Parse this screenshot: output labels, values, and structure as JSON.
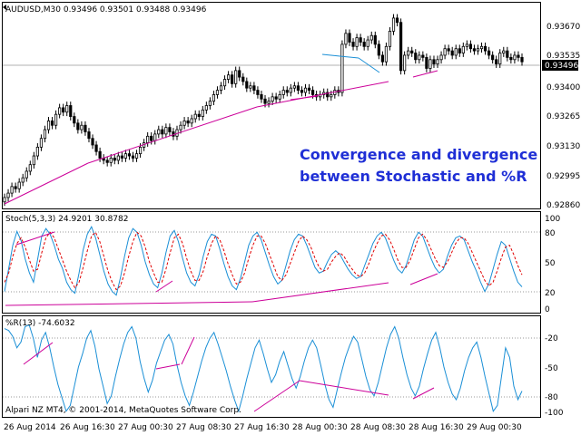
{
  "window": {
    "symbol_info": "AUDUSD,M30  0.93496 0.93501 0.93488 0.93496",
    "broker": "Alpari NZ MT4, © 2001-2014, MetaQuotes Software Corp.",
    "current_price": "0.93496"
  },
  "annotation": {
    "line1": "Convergence and divergence",
    "line2": "between Stochastic and %R"
  },
  "price_axis": [
    "0.93670",
    "0.93535",
    "0.93400",
    "0.93265",
    "0.93130",
    "0.92995",
    "0.92860"
  ],
  "stoch": {
    "title": "Stoch(5,3,3) 24.9201 30.8782",
    "axis": [
      "100",
      "80",
      "50",
      "20",
      "0"
    ]
  },
  "wpr": {
    "title": "%R(13) -74.6032",
    "axis": [
      "-20",
      "-50",
      "-80",
      "-100"
    ]
  },
  "time_axis": [
    "26 Aug 2014",
    "26 Aug 16:30",
    "27 Aug 00:30",
    "27 Aug 08:30",
    "27 Aug 16:30",
    "28 Aug 00:30",
    "28 Aug 08:30",
    "28 Aug 16:30",
    "29 Aug 00:30"
  ],
  "colors": {
    "candles": "#000000",
    "trendlines": "#cc0099",
    "main_line": "#1a8fd6",
    "signal_line": "#e00000",
    "annotation": "#1f2fd6",
    "price_box": "#000000"
  },
  "chart_data": [
    {
      "type": "candlestick",
      "title": "AUDUSD,M30",
      "ylim": [
        0.9282,
        0.9376
      ],
      "close": [
        0.9287,
        0.9289,
        0.9292,
        0.9291,
        0.9294,
        0.9296,
        0.9299,
        0.9302,
        0.9306,
        0.931,
        0.9314,
        0.9318,
        0.9322,
        0.932,
        0.9325,
        0.9328,
        0.9326,
        0.9329,
        0.9324,
        0.9321,
        0.9318,
        0.932,
        0.9317,
        0.9314,
        0.9311,
        0.9308,
        0.9305,
        0.9304,
        0.9303,
        0.9305,
        0.9304,
        0.9306,
        0.9305,
        0.9307,
        0.9306,
        0.9305,
        0.9307,
        0.931,
        0.9312,
        0.9315,
        0.9313,
        0.9316,
        0.9318,
        0.9316,
        0.9319,
        0.9317,
        0.9315,
        0.9318,
        0.932,
        0.9322,
        0.9321,
        0.9323,
        0.9325,
        0.9324,
        0.9327,
        0.9329,
        0.9331,
        0.9334,
        0.9336,
        0.9338,
        0.9341,
        0.9343,
        0.9339,
        0.9345,
        0.9342,
        0.934,
        0.9337,
        0.9338,
        0.9336,
        0.9334,
        0.9332,
        0.933,
        0.9331,
        0.9333,
        0.9332,
        0.9334,
        0.9336,
        0.9335,
        0.9337,
        0.9338,
        0.9336,
        0.9335,
        0.9337,
        0.9336,
        0.9334,
        0.9333,
        0.9334,
        0.9335,
        0.9333,
        0.9334,
        0.9336,
        0.9335,
        0.9357,
        0.9362,
        0.9358,
        0.9356,
        0.936,
        0.9358,
        0.9356,
        0.9359,
        0.9361,
        0.9357,
        0.9352,
        0.9349,
        0.9356,
        0.9363,
        0.9369,
        0.9367,
        0.9345,
        0.9352,
        0.9354,
        0.9353,
        0.935,
        0.9352,
        0.9351,
        0.9346,
        0.935,
        0.9348,
        0.935,
        0.9352,
        0.9355,
        0.9354,
        0.9352,
        0.9355,
        0.9353,
        0.9356,
        0.9357,
        0.9355,
        0.9354,
        0.9355,
        0.9356,
        0.9354,
        0.9352,
        0.935,
        0.9348,
        0.9353,
        0.9354,
        0.9351,
        0.935,
        0.9352,
        0.9351,
        0.9349
      ],
      "axis_ticks": [
        0.9367,
        0.93535,
        0.934,
        0.93265,
        0.9313,
        0.92995,
        0.9286
      ]
    },
    {
      "type": "line",
      "title": "Stoch(5,3,3)",
      "ylim": [
        0,
        100
      ],
      "series": [
        {
          "name": "main",
          "values": [
            20,
            45,
            70,
            85,
            75,
            55,
            40,
            30,
            55,
            80,
            88,
            82,
            70,
            55,
            45,
            30,
            22,
            18,
            40,
            65,
            82,
            90,
            78,
            60,
            42,
            28,
            20,
            16,
            35,
            58,
            78,
            88,
            84,
            70,
            52,
            38,
            28,
            24,
            40,
            62,
            80,
            86,
            74,
            56,
            40,
            30,
            26,
            38,
            58,
            74,
            82,
            80,
            66,
            50,
            36,
            26,
            22,
            34,
            52,
            70,
            80,
            84,
            76,
            62,
            48,
            36,
            28,
            32,
            48,
            64,
            76,
            82,
            80,
            70,
            58,
            46,
            40,
            42,
            52,
            60,
            64,
            60,
            52,
            44,
            38,
            34,
            36,
            48,
            60,
            72,
            80,
            84,
            78,
            66,
            54,
            44,
            40,
            48,
            62,
            76,
            84,
            80,
            68,
            56,
            46,
            40,
            44,
            58,
            70,
            78,
            80,
            76,
            64,
            52,
            42,
            30,
            20,
            28,
            44,
            60,
            74,
            70,
            56,
            42,
            30,
            25
          ]
        },
        {
          "name": "signal",
          "values": [
            30,
            40,
            58,
            72,
            78,
            68,
            54,
            42,
            44,
            62,
            78,
            84,
            78,
            66,
            54,
            42,
            32,
            24,
            30,
            46,
            64,
            80,
            84,
            74,
            58,
            42,
            30,
            22,
            26,
            40,
            58,
            74,
            84,
            80,
            68,
            52,
            40,
            30,
            30,
            44,
            62,
            78,
            82,
            72,
            56,
            42,
            32,
            32,
            42,
            58,
            72,
            80,
            76,
            64,
            50,
            38,
            28,
            30,
            40,
            56,
            70,
            80,
            80,
            72,
            60,
            48,
            36,
            32,
            38,
            50,
            62,
            74,
            80,
            76,
            68,
            56,
            46,
            42,
            44,
            52,
            58,
            62,
            58,
            50,
            44,
            38,
            36,
            40,
            50,
            62,
            72,
            80,
            82,
            76,
            66,
            54,
            46,
            46,
            54,
            66,
            78,
            82,
            76,
            66,
            56,
            48,
            46,
            52,
            62,
            72,
            78,
            78,
            72,
            62,
            52,
            42,
            32,
            26,
            30,
            42,
            56,
            68,
            70,
            60,
            48,
            38
          ]
        }
      ],
      "axis_ticks": [
        100,
        80,
        50,
        20,
        0
      ]
    },
    {
      "type": "line",
      "title": "%R(13)",
      "ylim": [
        -100,
        0
      ],
      "series": [
        {
          "name": "%R",
          "values": [
            -10,
            -12,
            -18,
            -30,
            -24,
            -8,
            -6,
            -20,
            -40,
            -22,
            -14,
            -30,
            -50,
            -68,
            -82,
            -96,
            -90,
            -70,
            -50,
            -36,
            -20,
            -12,
            -28,
            -52,
            -70,
            -88,
            -80,
            -60,
            -42,
            -26,
            -14,
            -8,
            -20,
            -44,
            -62,
            -76,
            -64,
            -46,
            -34,
            -22,
            -16,
            -26,
            -48,
            -66,
            -80,
            -90,
            -76,
            -60,
            -44,
            -30,
            -20,
            -14,
            -26,
            -40,
            -54,
            -70,
            -84,
            -96,
            -80,
            -62,
            -46,
            -30,
            -22,
            -36,
            -52,
            -66,
            -58,
            -44,
            -34,
            -48,
            -62,
            -72,
            -60,
            -44,
            -30,
            -22,
            -30,
            -48,
            -68,
            -84,
            -92,
            -74,
            -56,
            -40,
            -28,
            -18,
            -24,
            -42,
            -60,
            -74,
            -80,
            -66,
            -48,
            -30,
            -16,
            -8,
            -20,
            -40,
            -58,
            -72,
            -80,
            -70,
            -52,
            -36,
            -22,
            -14,
            -30,
            -50,
            -66,
            -78,
            -84,
            -72,
            -54,
            -40,
            -30,
            -24,
            -40,
            -60,
            -78,
            -96,
            -90,
            -60,
            -30,
            -40,
            -70,
            -84,
            -75
          ]
        }
      ],
      "axis_ticks": [
        -20,
        -50,
        -80,
        -100
      ]
    }
  ]
}
